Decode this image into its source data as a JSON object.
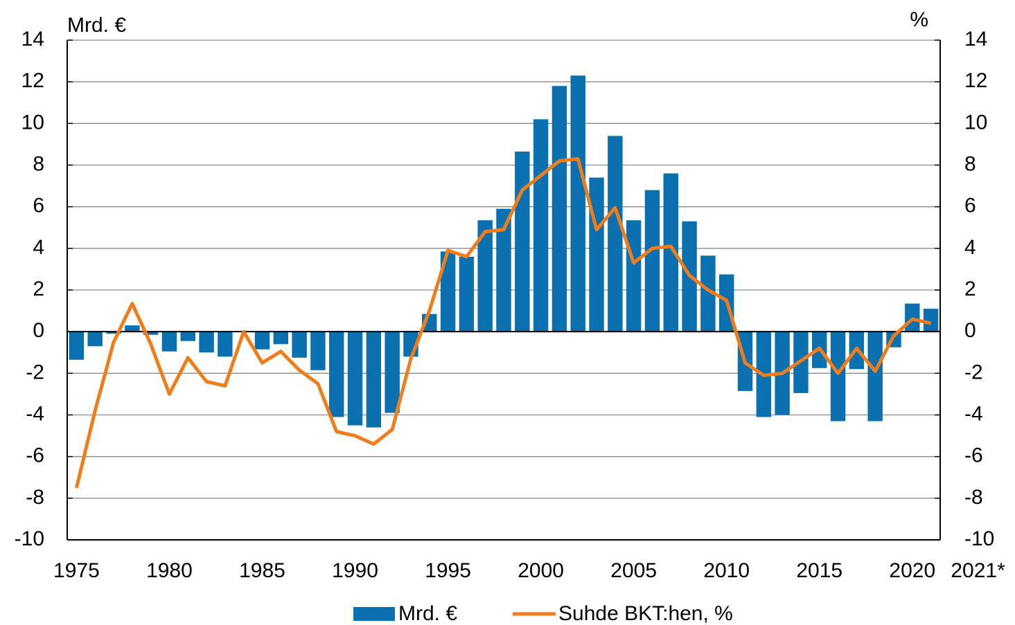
{
  "chart_data": {
    "type": "bar_line",
    "y_label": "Mrd. €",
    "y2_label": "%",
    "categories": [
      "1975",
      null,
      null,
      null,
      null,
      "1980",
      null,
      null,
      null,
      null,
      "1985",
      null,
      null,
      null,
      null,
      "1990",
      null,
      null,
      null,
      null,
      "1995",
      null,
      null,
      null,
      null,
      "2000",
      null,
      null,
      null,
      null,
      "2005",
      null,
      null,
      null,
      null,
      "2010",
      null,
      null,
      null,
      null,
      "2015",
      null,
      null,
      null,
      null,
      "2020",
      "2021*"
    ],
    "series": [
      {
        "name": "Mrd. €",
        "type": "bar",
        "color": "#0a70b0",
        "axis": "y",
        "values": [
          -1.35,
          -0.7,
          -0.1,
          0.3,
          -0.15,
          -0.95,
          -0.45,
          -1.0,
          -1.2,
          0,
          -0.85,
          -0.6,
          -1.25,
          -1.85,
          -4.1,
          -4.5,
          -4.6,
          -3.9,
          -1.2,
          0.85,
          3.85,
          3.6,
          5.35,
          5.9,
          8.65,
          10.2,
          11.8,
          12.3,
          7.4,
          9.4,
          5.35,
          6.8,
          7.6,
          5.3,
          3.65,
          2.75,
          -2.85,
          -4.1,
          -4.0,
          -2.95,
          -1.75,
          -4.3,
          -1.8,
          -4.3,
          -0.75,
          1.35,
          1.1
        ]
      },
      {
        "name": "Suhde BKT:hen, %",
        "type": "line",
        "color": "#f07d1a",
        "axis": "y2",
        "values": [
          -7.5,
          -3.8,
          -0.5,
          1.35,
          -0.6,
          -3.0,
          -1.25,
          -2.4,
          -2.6,
          0,
          -1.5,
          -0.95,
          -1.85,
          -2.5,
          -4.8,
          -5.0,
          -5.4,
          -4.7,
          -1.3,
          1.0,
          3.9,
          3.6,
          4.8,
          4.9,
          6.8,
          7.5,
          8.2,
          8.3,
          4.9,
          5.95,
          3.3,
          4.0,
          4.1,
          2.7,
          2.0,
          1.5,
          -1.5,
          -2.1,
          -2.0,
          -1.4,
          -0.8,
          -2.0,
          -0.8,
          -1.9,
          -0.2,
          0.6,
          0.4
        ]
      }
    ],
    "ylim": [
      -10,
      14
    ],
    "yticks": [
      -10,
      -8,
      -6,
      -4,
      -2,
      0,
      2,
      4,
      6,
      8,
      10,
      12,
      14
    ],
    "y2lim": [
      -10,
      14
    ],
    "y2ticks": [
      -10,
      -8,
      -6,
      -4,
      -2,
      0,
      2,
      4,
      6,
      8,
      10,
      12,
      14
    ],
    "grid": true,
    "legend": "bottom"
  }
}
